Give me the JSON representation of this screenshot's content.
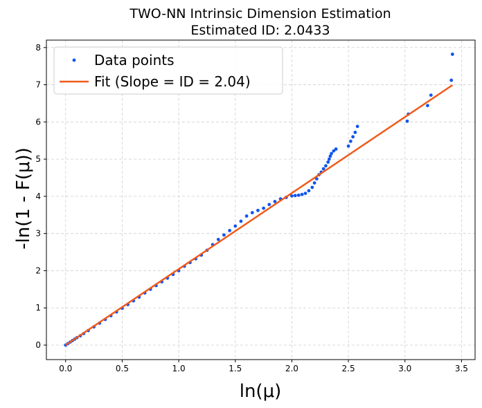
{
  "chart_data": {
    "type": "scatter",
    "title": "TWO-NN Intrinsic Dimension Estimation",
    "subtitle": "Estimated ID: 2.0433",
    "xlabel": "ln(μ)",
    "ylabel": "-ln(1 - F(μ))",
    "xlim": [
      -0.17,
      3.62
    ],
    "ylim": [
      -0.39,
      8.2
    ],
    "xticks": [
      0.0,
      0.5,
      1.0,
      1.5,
      2.0,
      2.5,
      3.0,
      3.5
    ],
    "xtick_labels": [
      "0.0",
      "0.5",
      "1.0",
      "1.5",
      "2.0",
      "2.5",
      "3.0",
      "3.5"
    ],
    "yticks": [
      0,
      1,
      2,
      3,
      4,
      5,
      6,
      7,
      8
    ],
    "ytick_labels": [
      "0",
      "1",
      "2",
      "3",
      "4",
      "5",
      "6",
      "7",
      "8"
    ],
    "grid": true,
    "legend_position": "top-left",
    "series": [
      {
        "name": "Data points",
        "kind": "scatter",
        "color": "#1155ee",
        "x": [
          0.0,
          0.02,
          0.04,
          0.06,
          0.08,
          0.1,
          0.13,
          0.16,
          0.2,
          0.25,
          0.3,
          0.35,
          0.4,
          0.45,
          0.5,
          0.55,
          0.6,
          0.65,
          0.7,
          0.75,
          0.8,
          0.85,
          0.9,
          0.95,
          1.0,
          1.05,
          1.1,
          1.15,
          1.2,
          1.25,
          1.3,
          1.35,
          1.4,
          1.45,
          1.5,
          1.55,
          1.6,
          1.65,
          1.7,
          1.75,
          1.8,
          1.85,
          1.9,
          1.95,
          2.0,
          2.03,
          2.06,
          2.09,
          2.12,
          2.15,
          2.18,
          2.2,
          2.22,
          2.24,
          2.26,
          2.28,
          2.3,
          2.32,
          2.33,
          2.34,
          2.35,
          2.37,
          2.39,
          2.5,
          2.52,
          2.54,
          2.56,
          2.58,
          3.02,
          3.03,
          3.2,
          3.23,
          3.41,
          3.42
        ],
        "y": [
          0.0,
          0.04,
          0.08,
          0.12,
          0.16,
          0.2,
          0.25,
          0.31,
          0.39,
          0.49,
          0.59,
          0.69,
          0.79,
          0.89,
          0.99,
          1.09,
          1.19,
          1.29,
          1.4,
          1.5,
          1.6,
          1.7,
          1.8,
          1.9,
          2.0,
          2.12,
          2.22,
          2.32,
          2.42,
          2.55,
          2.7,
          2.84,
          2.96,
          3.08,
          3.2,
          3.33,
          3.47,
          3.56,
          3.62,
          3.68,
          3.78,
          3.86,
          3.93,
          3.97,
          4.01,
          4.02,
          4.03,
          4.05,
          4.08,
          4.15,
          4.24,
          4.36,
          4.47,
          4.58,
          4.65,
          4.74,
          4.82,
          4.92,
          5.0,
          5.08,
          5.15,
          5.22,
          5.27,
          5.35,
          5.48,
          5.6,
          5.72,
          5.88,
          6.02,
          6.21,
          6.44,
          6.72,
          7.12,
          7.82
        ]
      },
      {
        "name": "Fit (Slope = ID = 2.04)",
        "kind": "line",
        "color": "#f05a1a",
        "x": [
          0.0,
          3.42
        ],
        "y": [
          0.0,
          6.99
        ]
      }
    ]
  }
}
